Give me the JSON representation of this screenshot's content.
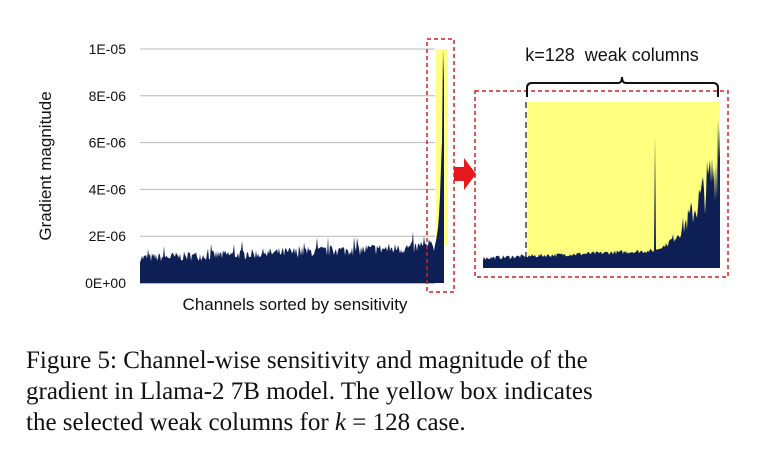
{
  "chart_data": [
    {
      "type": "bar",
      "description_of_series": "gradient magnitude per channel, channels sorted by sensitivity",
      "xlabel": "Channels sorted by sensitivity",
      "ylabel": "Gradient magnitude",
      "ylim": [
        0,
        1e-05
      ],
      "yticks": [
        "0E+00",
        "2E-06",
        "4E-06",
        "6E-06",
        "8E-06",
        "1E-05"
      ],
      "grid": true,
      "bar_color": "#0d1f55",
      "highlight_color": "#ffff80",
      "highlight_border_color": "#d42020",
      "series_profile": {
        "baseline_start": 1.1e-06,
        "baseline_end": 1.6e-06,
        "tail_peak": 8.6e-06,
        "clip_at": 1e-05
      }
    },
    {
      "type": "bar",
      "label": "k=128  weak columns",
      "k": 128,
      "bar_color": "#0d1f55",
      "highlight_color": "#ffff80",
      "border_color": "#d42020"
    }
  ],
  "arrow_color": "#e8191c",
  "caption": {
    "line1": "Figure 5: Channel-wise sensitivity and magnitude of the",
    "line2": "gradient in Llama-2 7B model. The yellow box indicates",
    "line3_pre": "the selected weak columns for ",
    "line3_k": "k",
    "line3_eq": " = 128",
    "line3_post": " case."
  }
}
